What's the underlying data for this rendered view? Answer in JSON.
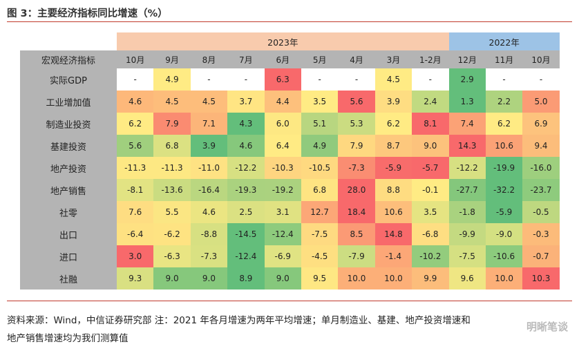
{
  "title": "图 3：主要经济指标同比增速（%）",
  "note_line1": "资料来源：Wind，中信证券研究部  注：2021 年各月增速为两年平均增速；单月制造业、基建、地产投资增速和",
  "note_line2": "地产销售增速均为我们测算值",
  "watermark": "明晰笔谈",
  "chart_data": {
    "type": "table",
    "header_label": "宏观经济指标",
    "year_groups": [
      {
        "label": "2023年",
        "span": 9,
        "color": "#f8cbad"
      },
      {
        "label": "2022年",
        "span": 3,
        "color": "#9dc3e6"
      }
    ],
    "columns": [
      "10月",
      "9月",
      "8月",
      "7月",
      "6月",
      "5月",
      "4月",
      "3月",
      "1-2月",
      "12月",
      "11月",
      "10月"
    ],
    "rows": [
      {
        "name": "实际GDP",
        "values": [
          "-",
          "4.9",
          "-",
          "-",
          "6.3",
          "-",
          "-",
          "4.5",
          "-",
          "2.9",
          "-",
          "-"
        ],
        "colors": [
          "#ffffff",
          "#ffeb84",
          "#ffffff",
          "#ffffff",
          "#f8696b",
          "#ffffff",
          "#ffffff",
          "#ffeb84",
          "#ffffff",
          "#63be7b",
          "#ffffff",
          "#ffffff"
        ]
      },
      {
        "name": "工业增加值",
        "values": [
          "4.6",
          "4.5",
          "4.5",
          "3.7",
          "4.4",
          "3.5",
          "5.6",
          "3.9",
          "2.4",
          "1.3",
          "2.2",
          "5.0"
        ],
        "colors": [
          "#fdb87a",
          "#fdbd7b",
          "#fdbd7b",
          "#ffe583",
          "#fdc07c",
          "#ffeb84",
          "#f8696b",
          "#fedd82",
          "#c1da81",
          "#63be7b",
          "#aed37f",
          "#fb9b75"
        ]
      },
      {
        "name": "制造业投资",
        "values": [
          "6.2",
          "7.9",
          "7.1",
          "4.3",
          "6.0",
          "5.1",
          "5.3",
          "6.2",
          "8.1",
          "7.4",
          "6.2",
          "6.9"
        ],
        "colors": [
          "#ffeb84",
          "#fa8b71",
          "#fcb579",
          "#63be7b",
          "#fde883",
          "#b8d680",
          "#cbdc81",
          "#ffeb84",
          "#f8696b",
          "#fba276",
          "#ffeb84",
          "#fdc37d"
        ]
      },
      {
        "name": "基建投资",
        "values": [
          "5.6",
          "6.8",
          "3.9",
          "4.6",
          "6.4",
          "4.9",
          "7.9",
          "8.7",
          "9.0",
          "14.3",
          "10.6",
          "9.4"
        ],
        "colors": [
          "#a0cf7e",
          "#dbe182",
          "#63be7b",
          "#86c87c",
          "#ffeb84",
          "#90ca7d",
          "#fed880",
          "#fdc87d",
          "#fcc27c",
          "#f8696b",
          "#fba276",
          "#fcbd7b"
        ]
      },
      {
        "name": "地产投资",
        "values": [
          "-11.3",
          "-11.3",
          "-11.0",
          "-12.2",
          "-10.3",
          "-10.5",
          "-7.3",
          "-5.9",
          "-5.7",
          "-12.2",
          "-19.9",
          "-16.0"
        ],
        "colors": [
          "#fde883",
          "#fde883",
          "#fee283",
          "#d7e082",
          "#fed580",
          "#fed980",
          "#fa8d72",
          "#f86c6b",
          "#f8696b",
          "#d7e082",
          "#63be7b",
          "#9ecf7e"
        ]
      },
      {
        "name": "地产销售",
        "values": [
          "-8.1",
          "-13.6",
          "-16.4",
          "-19.3",
          "-19.2",
          "6.8",
          "28.0",
          "8.8",
          "-0.1",
          "-27.7",
          "-32.2",
          "-23.7"
        ],
        "colors": [
          "#e2e383",
          "#cadc81",
          "#bad780",
          "#aad27f",
          "#abd27f",
          "#fee482",
          "#f8696b",
          "#fedc81",
          "#ffeb84",
          "#84c77c",
          "#63be7b",
          "#8ecb7d"
        ]
      },
      {
        "name": "社零",
        "values": [
          "7.6",
          "5.5",
          "4.6",
          "2.5",
          "3.1",
          "12.7",
          "18.4",
          "10.6",
          "3.5",
          "-1.8",
          "-5.9",
          "-0.5"
        ],
        "colors": [
          "#fedd82",
          "#fbe683",
          "#ebe582",
          "#dbe182",
          "#e0e282",
          "#fca777",
          "#f8696b",
          "#fdbe7b",
          "#e5e482",
          "#a9d27f",
          "#63be7b",
          "#bed880"
        ]
      },
      {
        "name": "出口",
        "values": [
          "-6.4",
          "-6.2",
          "-8.8",
          "-14.5",
          "-12.4",
          "-7.5",
          "8.5",
          "14.8",
          "-6.8",
          "-9.9",
          "-9.0",
          "-0.3"
        ],
        "colors": [
          "#fee182",
          "#fee382",
          "#d7e082",
          "#63be7b",
          "#8ecb7d",
          "#feda81",
          "#fb9a75",
          "#f8696b",
          "#fede82",
          "#c4da81",
          "#d4e082",
          "#fcbb7a"
        ]
      },
      {
        "name": "进口",
        "values": [
          "3.0",
          "-6.3",
          "-7.3",
          "-12.4",
          "-6.9",
          "-4.5",
          "-7.9",
          "-1.4",
          "-10.2",
          "-7.5",
          "-10.6",
          "-0.7"
        ],
        "colors": [
          "#f8696b",
          "#e9e583",
          "#d9e182",
          "#63be7b",
          "#e0e383",
          "#fedf81",
          "#ccdd82",
          "#fca777",
          "#93cc7d",
          "#d5e082",
          "#8ccb7d",
          "#fbb279"
        ]
      },
      {
        "name": "社融",
        "values": [
          "9.3",
          "9.0",
          "9.0",
          "8.9",
          "9.0",
          "9.5",
          "10.0",
          "10.0",
          "9.9",
          "9.6",
          "10.0",
          "10.3"
        ],
        "colors": [
          "#d9e082",
          "#86c87c",
          "#86c87c",
          "#63be7b",
          "#86c87c",
          "#fee783",
          "#fcaf78",
          "#fcaf78",
          "#fcbd7b",
          "#efe683",
          "#fcaf78",
          "#f8696b"
        ]
      }
    ]
  }
}
